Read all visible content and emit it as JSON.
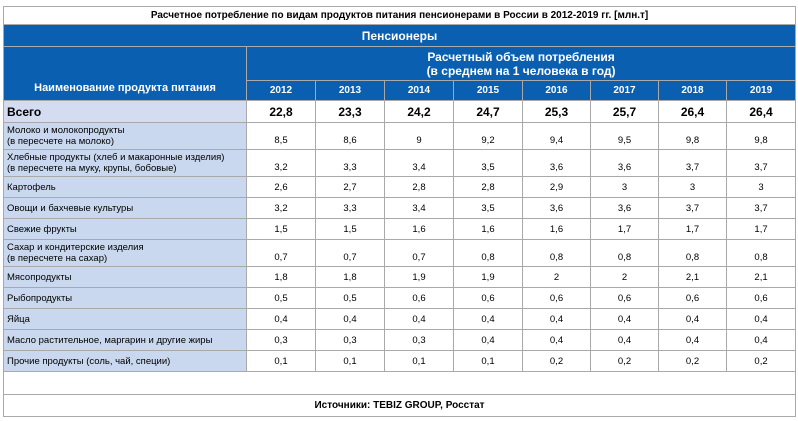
{
  "title": "Расчетное потребление по видам продуктов питания пенсионерами в России в 2012-2019 гг. [млн.т]",
  "group_label": "Пенсионеры",
  "header": {
    "name_label": "Наименование продукта питания",
    "metric_line1": "Расчетный объем потребления",
    "metric_line2": "(в среднем на 1 человека в год)",
    "years": [
      "2012",
      "2013",
      "2014",
      "2015",
      "2016",
      "2017",
      "2018",
      "2019"
    ]
  },
  "total": {
    "label": "Всего",
    "values": [
      "22,8",
      "23,3",
      "24,2",
      "24,7",
      "25,3",
      "25,7",
      "26,4",
      "26,4"
    ]
  },
  "rows": [
    {
      "line1": "Молоко и молокопродукты",
      "line2": " (в пересчете на молоко)",
      "values": [
        "8,5",
        "8,6",
        "9",
        "9,2",
        "9,4",
        "9,5",
        "9,8",
        "9,8"
      ]
    },
    {
      "line1": "Хлебные продукты (хлеб и макаронные изделия)",
      "line2": " (в пересчете на муку, крупы, бобовые)",
      "values": [
        "3,2",
        "3,3",
        "3,4",
        "3,5",
        "3,6",
        "3,6",
        "3,7",
        "3,7"
      ]
    },
    {
      "line1": "Картофель",
      "line2": "",
      "values": [
        "2,6",
        "2,7",
        "2,8",
        "2,8",
        "2,9",
        "3",
        "3",
        "3"
      ]
    },
    {
      "line1": "Овощи и бахчевые культуры",
      "line2": "",
      "values": [
        "3,2",
        "3,3",
        "3,4",
        "3,5",
        "3,6",
        "3,6",
        "3,7",
        "3,7"
      ]
    },
    {
      "line1": "Свежие фрукты",
      "line2": "",
      "values": [
        "1,5",
        "1,5",
        "1,6",
        "1,6",
        "1,6",
        "1,7",
        "1,7",
        "1,7"
      ]
    },
    {
      "line1": "Сахар и кондитерские изделия",
      "line2": " (в пересчете на сахар)",
      "values": [
        "0,7",
        "0,7",
        "0,7",
        "0,8",
        "0,8",
        "0,8",
        "0,8",
        "0,8"
      ]
    },
    {
      "line1": "Мясопродукты",
      "line2": "",
      "values": [
        "1,8",
        "1,8",
        "1,9",
        "1,9",
        "2",
        "2",
        "2,1",
        "2,1"
      ]
    },
    {
      "line1": "Рыбопродукты",
      "line2": "",
      "values": [
        "0,5",
        "0,5",
        "0,6",
        "0,6",
        "0,6",
        "0,6",
        "0,6",
        "0,6"
      ]
    },
    {
      "line1": "Яйца",
      "line2": "",
      "values": [
        "0,4",
        "0,4",
        "0,4",
        "0,4",
        "0,4",
        "0,4",
        "0,4",
        "0,4"
      ]
    },
    {
      "line1": "Масло растительное, маргарин и другие жиры",
      "line2": "",
      "values": [
        "0,3",
        "0,3",
        "0,3",
        "0,4",
        "0,4",
        "0,4",
        "0,4",
        "0,4"
      ]
    },
    {
      "line1": "Прочие продукты (соль, чай, специи)",
      "line2": "",
      "values": [
        "0,1",
        "0,1",
        "0,1",
        "0,1",
        "0,2",
        "0,2",
        "0,2",
        "0,2"
      ]
    }
  ],
  "source": "Источники: TEBIZ GROUP, Росстат",
  "colors": {
    "header_blue": "#0a5fb0",
    "label_cell_blue": "#c9d8ee",
    "total_label_blue": "#d3dcf0",
    "grid_line": "#a9a9a9"
  }
}
